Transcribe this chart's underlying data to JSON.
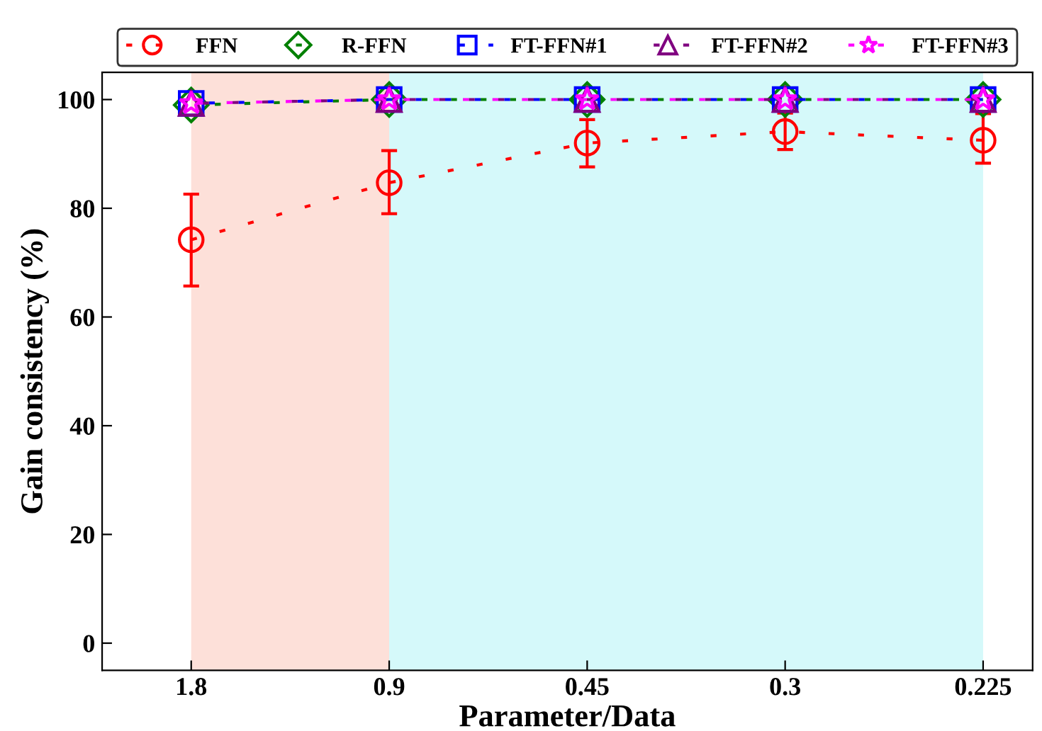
{
  "chart_data": {
    "type": "line",
    "xlabel": "Parameter/Data",
    "ylabel": "Gain consistency (%)",
    "categories": [
      "1.8",
      "0.9",
      "0.45",
      "0.3",
      "0.225"
    ],
    "ylim": [
      -5,
      105
    ],
    "yticks": [
      0,
      20,
      40,
      60,
      80,
      100
    ],
    "series": [
      {
        "name": "FFN",
        "color": "#ff0000",
        "marker": "circle",
        "values": [
          74.2,
          84.7,
          92.0,
          94.1,
          92.5
        ],
        "errors": [
          [
            65.7,
            82.6
          ],
          [
            79.0,
            90.6
          ],
          [
            87.6,
            96.3
          ],
          [
            90.8,
            97.5
          ],
          [
            88.3,
            97.4
          ]
        ]
      },
      {
        "name": "R-FFN",
        "color": "#008000",
        "marker": "diamond",
        "values": [
          99.0,
          100,
          100,
          100,
          100
        ]
      },
      {
        "name": "FT-FFN#1",
        "color": "#0000ff",
        "marker": "square",
        "values": [
          99.3,
          100,
          100,
          100,
          100
        ]
      },
      {
        "name": "FT-FFN#2",
        "color": "#800080",
        "marker": "triangle",
        "values": [
          99.3,
          100,
          100,
          100,
          100
        ]
      },
      {
        "name": "FT-FFN#3",
        "color": "#ff00ff",
        "marker": "star",
        "values": [
          99.3,
          100,
          100,
          100,
          100
        ]
      }
    ],
    "bands": [
      {
        "axis": "x",
        "from": "1.8",
        "to": "0.9",
        "color": "#fde0d9"
      },
      {
        "axis": "x",
        "from": "0.9",
        "to": "0.225",
        "color": "#d5f9fa"
      }
    ],
    "line_style": "dashed",
    "legend": "top",
    "grid": false
  }
}
